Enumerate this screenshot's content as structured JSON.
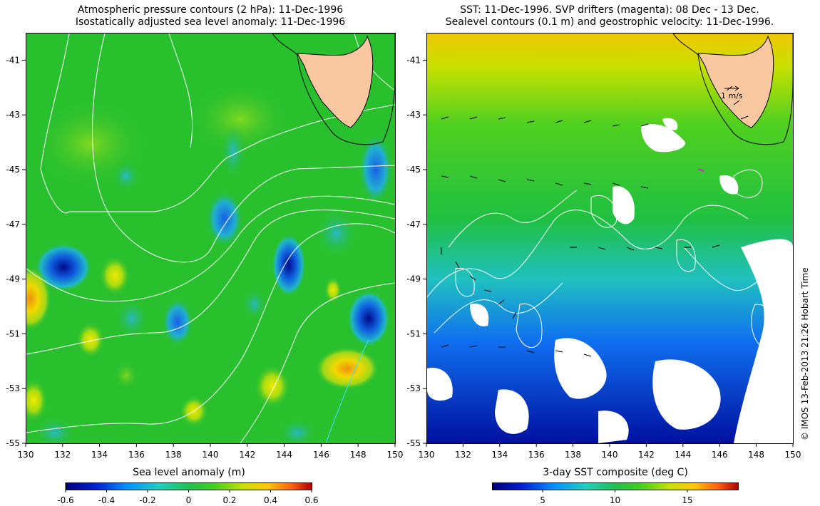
{
  "left_panel": {
    "title_line1": "Atmospheric pressure contours (2 hPa): 11-Dec-1996",
    "title_line2": "Isostatically adjusted sea level anomaly: 11-Dec-1996",
    "colorbar": {
      "title": "Sea level anomaly (m)",
      "ticks": [
        "-0.6",
        "-0.4",
        "-0.2",
        "0",
        "0.2",
        "0.4",
        "0.6"
      ],
      "tick_values": [
        -0.6,
        -0.4,
        -0.2,
        0,
        0.2,
        0.4,
        0.6
      ],
      "range": [
        -0.6,
        0.6
      ]
    }
  },
  "right_panel": {
    "title_line1": "SST: 11-Dec-1996. SVP drifters (magenta): 08 Dec - 13 Dec.",
    "title_line2": "Sealevel contours (0.1 m) and geostrophic velocity: 11-Dec-1996.",
    "velocity_scale_label": "1 m/s",
    "colorbar": {
      "title": "3-day SST composite (deg C)",
      "ticks": [
        "5",
        "10",
        "15"
      ],
      "tick_values": [
        5,
        10,
        15
      ],
      "range": [
        1.5,
        18.5
      ]
    }
  },
  "axes": {
    "lon_ticks": [
      "130",
      "132",
      "134",
      "136",
      "138",
      "140",
      "142",
      "144",
      "146",
      "148",
      "150"
    ],
    "lat_ticks": [
      "-41",
      "-43",
      "-45",
      "-47",
      "-49",
      "-51",
      "-53",
      "-55"
    ],
    "lon_range": [
      130,
      150
    ],
    "lat_range": [
      -40,
      -55
    ]
  },
  "credit": "© IMOS 13-Feb-2013 21:26 Hobart Time",
  "colors": {
    "land": "#fac8a0",
    "ocean_mid": "#29c02e",
    "contour": "#ffffff",
    "coast": "#000000",
    "drifter": "#ff00ff"
  }
}
